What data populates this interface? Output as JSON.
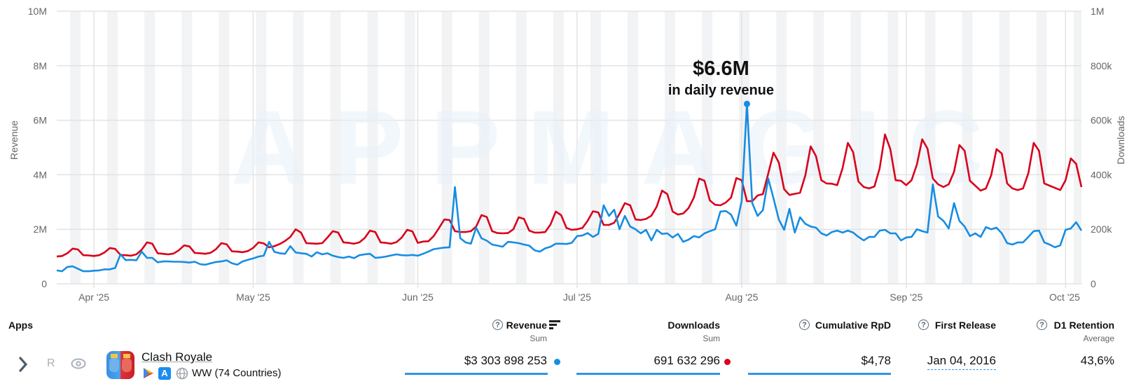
{
  "colors": {
    "revenue": "#168de2",
    "downloads": "#d9001b",
    "weekend_band": "#f2f3f5",
    "grid": "#e3e3e3"
  },
  "watermark": "APPMAGIC",
  "annotation": {
    "value": "$6.6M",
    "caption": "in daily revenue"
  },
  "chart_data": {
    "type": "line",
    "x_type": "date",
    "xlim": [
      "2025-03-25",
      "2025-10-04"
    ],
    "x_step": "1 day",
    "x_ticks": [
      "Apr '25",
      "May '25",
      "Jun '25",
      "Jul '25",
      "Aug '25",
      "Sep '25",
      "Oct '25"
    ],
    "x_tick_dates": [
      "2025-04-01",
      "2025-05-01",
      "2025-06-01",
      "2025-07-01",
      "2025-08-01",
      "2025-09-01",
      "2025-10-01"
    ],
    "weekend_shading": true,
    "grid": true,
    "y_left": {
      "label": "Revenue",
      "ylim": [
        0,
        10000000
      ],
      "ticks": [
        "0",
        "2M",
        "4M",
        "6M",
        "8M",
        "10M"
      ]
    },
    "y_right": {
      "label": "Downloads",
      "ylim": [
        0,
        1000000
      ],
      "ticks": [
        "0",
        "200k",
        "400k",
        "600k",
        "800k",
        "1M"
      ]
    },
    "series": [
      {
        "key": "revenue",
        "axis": "left",
        "unit": "USD millions",
        "values": [
          0.49,
          0.46,
          0.62,
          0.64,
          0.55,
          0.46,
          0.46,
          0.48,
          0.49,
          0.53,
          0.53,
          0.58,
          1.08,
          0.87,
          0.88,
          0.86,
          1.18,
          0.95,
          0.95,
          0.79,
          0.82,
          0.82,
          0.81,
          0.81,
          0.8,
          0.78,
          0.81,
          0.72,
          0.7,
          0.75,
          0.8,
          0.82,
          0.86,
          0.75,
          0.7,
          0.82,
          0.88,
          0.93,
          1.0,
          1.03,
          1.54,
          1.17,
          1.12,
          1.1,
          1.38,
          1.15,
          1.12,
          1.1,
          1.0,
          1.16,
          1.08,
          1.12,
          1.03,
          0.98,
          0.95,
          1.0,
          0.94,
          1.05,
          1.08,
          1.1,
          0.95,
          0.97,
          1.0,
          1.04,
          1.08,
          1.05,
          1.04,
          1.06,
          1.03,
          1.1,
          1.18,
          1.27,
          1.3,
          1.33,
          1.34,
          3.55,
          1.67,
          1.52,
          1.47,
          2.06,
          1.67,
          1.58,
          1.44,
          1.4,
          1.36,
          1.54,
          1.52,
          1.49,
          1.44,
          1.4,
          1.23,
          1.18,
          1.3,
          1.36,
          1.47,
          1.47,
          1.46,
          1.5,
          1.75,
          1.77,
          1.86,
          1.72,
          1.83,
          2.88,
          2.49,
          2.72,
          2.0,
          2.49,
          2.1,
          2.0,
          1.85,
          1.98,
          1.59,
          1.98,
          1.83,
          1.85,
          1.7,
          1.83,
          1.54,
          1.62,
          1.75,
          1.7,
          1.85,
          1.93,
          2.0,
          2.65,
          2.67,
          2.54,
          2.13,
          3.03,
          6.6,
          2.96,
          2.49,
          2.7,
          3.86,
          3.14,
          2.36,
          1.98,
          2.75,
          1.88,
          2.44,
          2.2,
          2.1,
          2.06,
          1.85,
          1.77,
          1.9,
          1.95,
          1.88,
          1.95,
          1.88,
          1.72,
          1.59,
          1.72,
          1.72,
          1.95,
          1.98,
          1.85,
          1.85,
          1.59,
          1.7,
          1.72,
          2.0,
          1.93,
          1.88,
          3.65,
          2.47,
          2.31,
          2.03,
          2.96,
          2.31,
          2.1,
          1.75,
          1.85,
          1.72,
          2.08,
          2.0,
          2.06,
          1.85,
          1.49,
          1.44,
          1.52,
          1.52,
          1.72,
          1.93,
          1.95,
          1.52,
          1.44,
          1.34,
          1.41,
          1.98,
          2.03,
          2.26,
          1.95
        ]
      },
      {
        "key": "downloads",
        "axis": "right",
        "unit": "thousands",
        "values": [
          100,
          102,
          112,
          129,
          126,
          105,
          104,
          102,
          105,
          115,
          131,
          128,
          106,
          105,
          103,
          108,
          125,
          152,
          147,
          112,
          110,
          108,
          111,
          123,
          141,
          137,
          113,
          112,
          110,
          114,
          127,
          149,
          145,
          119,
          118,
          116,
          120,
          132,
          152,
          148,
          134,
          138,
          146,
          157,
          172,
          200,
          188,
          149,
          148,
          147,
          149,
          170,
          193,
          188,
          152,
          150,
          147,
          152,
          168,
          195,
          190,
          152,
          150,
          147,
          153,
          170,
          198,
          192,
          150,
          155,
          156,
          175,
          205,
          236,
          234,
          193,
          190,
          190,
          193,
          210,
          252,
          245,
          193,
          186,
          185,
          186,
          200,
          244,
          238,
          195,
          188,
          188,
          190,
          218,
          265,
          252,
          205,
          198,
          200,
          205,
          231,
          266,
          262,
          216,
          216,
          224,
          257,
          296,
          288,
          236,
          234,
          238,
          250,
          283,
          342,
          329,
          265,
          254,
          258,
          278,
          316,
          386,
          378,
          306,
          290,
          288,
          298,
          316,
          388,
          380,
          303,
          303,
          324,
          329,
          404,
          481,
          445,
          347,
          326,
          330,
          334,
          398,
          504,
          468,
          380,
          368,
          367,
          362,
          424,
          517,
          483,
          375,
          355,
          350,
          357,
          424,
          548,
          494,
          380,
          378,
          362,
          380,
          437,
          530,
          496,
          386,
          365,
          355,
          365,
          411,
          509,
          488,
          378,
          360,
          342,
          350,
          398,
          494,
          478,
          368,
          350,
          344,
          350,
          406,
          517,
          488,
          368,
          360,
          352,
          344,
          380,
          460,
          440,
          355
        ]
      }
    ]
  },
  "table": {
    "apps_header": "Apps",
    "columns": [
      {
        "label": "Revenue",
        "sub": "Sum",
        "help": "?"
      },
      {
        "label": "Downloads",
        "sub": "Sum"
      },
      {
        "label": "Cumulative RpD",
        "help": "?"
      },
      {
        "label": "First Release",
        "help": "?"
      },
      {
        "label": "D1 Retention",
        "sub": "Average",
        "help": "?"
      }
    ],
    "row": {
      "rank_label": "R",
      "app_name": "Clash Royale",
      "region": "WW (74 Countries)",
      "revenue": "$3 303 898 253",
      "downloads": "691 632 296",
      "cumulative_rpd": "$4,78",
      "first_release": "Jan 04, 2016",
      "d1_retention": "43,6%"
    }
  }
}
